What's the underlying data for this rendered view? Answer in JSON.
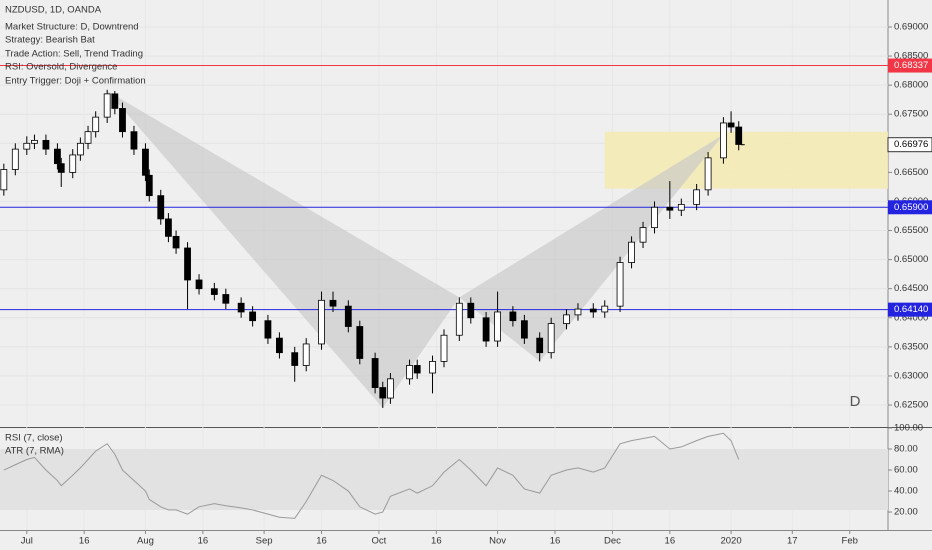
{
  "chart_data": {
    "type": "candlestick",
    "title": "NZDUSD, 1D, OANDA",
    "notes": [
      "Market Structure: D, Downtrend",
      "Strategy: Bearish Bat",
      "Trade Action: Sell, Trend Trading",
      "RSI: Oversold, Divergence",
      "Entry Trigger: Doji + Confirmation"
    ],
    "x": [
      -6,
      -3,
      0,
      2,
      5,
      8,
      9,
      12,
      14,
      16,
      18,
      21,
      23,
      25,
      28,
      31,
      32,
      35,
      37,
      39,
      42,
      45,
      49,
      52,
      56,
      59,
      63,
      66,
      70,
      73,
      77,
      80,
      84,
      87,
      91,
      93,
      95,
      100,
      102,
      106,
      109,
      113,
      116,
      120,
      123,
      127,
      130,
      134,
      137,
      141,
      144,
      148,
      151,
      155,
      158,
      161,
      164,
      168,
      171,
      175,
      178,
      182,
      184,
      186
    ],
    "open": [
      0.662,
      0.6655,
      0.669,
      0.67,
      0.6705,
      0.669,
      0.6665,
      0.665,
      0.668,
      0.67,
      0.672,
      0.6745,
      0.6785,
      0.676,
      0.672,
      0.669,
      0.6645,
      0.661,
      0.657,
      0.654,
      0.652,
      0.6465,
      0.645,
      0.644,
      0.6425,
      0.641,
      0.6395,
      0.6365,
      0.634,
      0.6318,
      0.6355,
      0.643,
      0.642,
      0.6385,
      0.633,
      0.628,
      0.6262,
      0.6295,
      0.6318,
      0.6305,
      0.6325,
      0.637,
      0.6425,
      0.64,
      0.636,
      0.641,
      0.6395,
      0.6365,
      0.634,
      0.639,
      0.6405,
      0.6415,
      0.641,
      0.642,
      0.6495,
      0.653,
      0.6555,
      0.659,
      0.6585,
      0.6595,
      0.662,
      0.6675,
      0.6735,
      0.6728
    ],
    "high": [
      0.6665,
      0.67,
      0.6712,
      0.6715,
      0.6715,
      0.67,
      0.6675,
      0.669,
      0.671,
      0.673,
      0.6755,
      0.6792,
      0.679,
      0.677,
      0.673,
      0.67,
      0.6655,
      0.662,
      0.658,
      0.655,
      0.653,
      0.6475,
      0.646,
      0.645,
      0.6435,
      0.642,
      0.6405,
      0.6375,
      0.635,
      0.6365,
      0.6445,
      0.6445,
      0.643,
      0.6395,
      0.634,
      0.629,
      0.6305,
      0.6328,
      0.6328,
      0.6335,
      0.638,
      0.6435,
      0.6435,
      0.641,
      0.6445,
      0.642,
      0.6405,
      0.6375,
      0.64,
      0.6415,
      0.6425,
      0.6425,
      0.643,
      0.6505,
      0.654,
      0.6565,
      0.66,
      0.6635,
      0.6605,
      0.663,
      0.6685,
      0.6745,
      0.6755,
      0.6738
    ],
    "low": [
      0.661,
      0.6645,
      0.668,
      0.669,
      0.668,
      0.6655,
      0.6625,
      0.664,
      0.667,
      0.669,
      0.671,
      0.6735,
      0.675,
      0.671,
      0.668,
      0.6635,
      0.66,
      0.656,
      0.653,
      0.651,
      0.6415,
      0.644,
      0.643,
      0.6415,
      0.64,
      0.6385,
      0.6355,
      0.633,
      0.629,
      0.6308,
      0.6345,
      0.641,
      0.6375,
      0.632,
      0.627,
      0.6245,
      0.6252,
      0.6285,
      0.6295,
      0.627,
      0.6315,
      0.636,
      0.639,
      0.635,
      0.635,
      0.6385,
      0.6355,
      0.6325,
      0.633,
      0.638,
      0.6395,
      0.64,
      0.64,
      0.641,
      0.6485,
      0.652,
      0.6545,
      0.657,
      0.6575,
      0.6585,
      0.661,
      0.6665,
      0.6718,
      0.6688
    ],
    "close": [
      0.6655,
      0.669,
      0.67,
      0.6705,
      0.669,
      0.6665,
      0.665,
      0.668,
      0.67,
      0.672,
      0.6745,
      0.6785,
      0.676,
      0.672,
      0.669,
      0.6645,
      0.661,
      0.657,
      0.654,
      0.652,
      0.6465,
      0.645,
      0.644,
      0.6425,
      0.641,
      0.6395,
      0.6365,
      0.634,
      0.6318,
      0.6355,
      0.643,
      0.642,
      0.6385,
      0.633,
      0.628,
      0.6262,
      0.6295,
      0.6318,
      0.6305,
      0.6325,
      0.637,
      0.6425,
      0.64,
      0.636,
      0.641,
      0.6395,
      0.6365,
      0.634,
      0.639,
      0.6405,
      0.6415,
      0.641,
      0.642,
      0.6495,
      0.653,
      0.6555,
      0.659,
      0.6585,
      0.6595,
      0.662,
      0.6675,
      0.6735,
      0.6728,
      0.6698
    ],
    "xlim": [
      -7,
      225
    ],
    "ylim": [
      0.62122,
      0.69464
    ],
    "xticks": [
      {
        "value": 0,
        "label": "Jul"
      },
      {
        "value": 15,
        "label": "16"
      },
      {
        "value": 31,
        "label": "Aug"
      },
      {
        "value": 46,
        "label": "16"
      },
      {
        "value": 62,
        "label": "Sep"
      },
      {
        "value": 77,
        "label": "16"
      },
      {
        "value": 92,
        "label": "Oct"
      },
      {
        "value": 107,
        "label": "16"
      },
      {
        "value": 123,
        "label": "Nov"
      },
      {
        "value": 138,
        "label": "16"
      },
      {
        "value": 153,
        "label": "Dec"
      },
      {
        "value": 168,
        "label": "16"
      },
      {
        "value": 184,
        "label": "2020"
      },
      {
        "value": 200,
        "label": "17"
      },
      {
        "value": 215,
        "label": "Feb"
      }
    ],
    "yticks": [
      {
        "value": 0.625,
        "label": "0.62500"
      },
      {
        "value": 0.63,
        "label": "0.63000"
      },
      {
        "value": 0.635,
        "label": "0.63500"
      },
      {
        "value": 0.64,
        "label": "0.64000"
      },
      {
        "value": 0.645,
        "label": "0.64500"
      },
      {
        "value": 0.65,
        "label": "0.65000"
      },
      {
        "value": 0.655,
        "label": "0.65500"
      },
      {
        "value": 0.66,
        "label": "0.66000"
      },
      {
        "value": 0.665,
        "label": "0.66500"
      },
      {
        "value": 0.67,
        "label": "0.67000"
      },
      {
        "value": 0.675,
        "label": "0.67500"
      },
      {
        "value": 0.68,
        "label": "0.68000"
      },
      {
        "value": 0.685,
        "label": "0.68500"
      },
      {
        "value": 0.69,
        "label": "0.69000"
      }
    ],
    "grid": true,
    "levels": [
      {
        "value": 0.68337,
        "label": "0.68337",
        "color": "#f23645"
      },
      {
        "value": 0.659,
        "label": "0.65900",
        "color": "#2424e0"
      },
      {
        "value": 0.6414,
        "label": "0.64140",
        "color": "#2424e0"
      }
    ],
    "last_price": {
      "value": 0.66976,
      "label": "0.66976"
    },
    "zone": {
      "x": [
        151,
        225
      ],
      "y": [
        0.6622,
        0.672
      ],
      "color": "#f5eab0"
    },
    "pattern": {
      "x": [
        21,
        93,
        113,
        134,
        182
      ],
      "y": [
        0.679,
        0.6245,
        0.6435,
        0.6325,
        0.6715
      ],
      "color": "#c8c8c8",
      "label": "D"
    },
    "rsi": {
      "title": "RSI (7, close)",
      "subtitle": "ATR (7, RMA)",
      "values": [
        60,
        65,
        70,
        72,
        60,
        50,
        45,
        55,
        62,
        70,
        78,
        85,
        75,
        60,
        50,
        40,
        32,
        25,
        22,
        22,
        18,
        25,
        28,
        26,
        24,
        22,
        18,
        15,
        14,
        30,
        55,
        50,
        40,
        25,
        18,
        20,
        35,
        42,
        38,
        45,
        58,
        70,
        60,
        45,
        62,
        55,
        42,
        38,
        55,
        60,
        62,
        58,
        62,
        85,
        88,
        90,
        92,
        80,
        82,
        88,
        92,
        95,
        88,
        70
      ],
      "ylim": [
        2.9,
        100
      ],
      "band": [
        22,
        80
      ],
      "yticks": [
        {
          "value": 100,
          "label": "100.00"
        },
        {
          "value": 80,
          "label": "80.00"
        },
        {
          "value": 60,
          "label": "60.00"
        },
        {
          "value": 40,
          "label": "40.00"
        },
        {
          "value": 20,
          "label": "20.00"
        }
      ]
    }
  }
}
